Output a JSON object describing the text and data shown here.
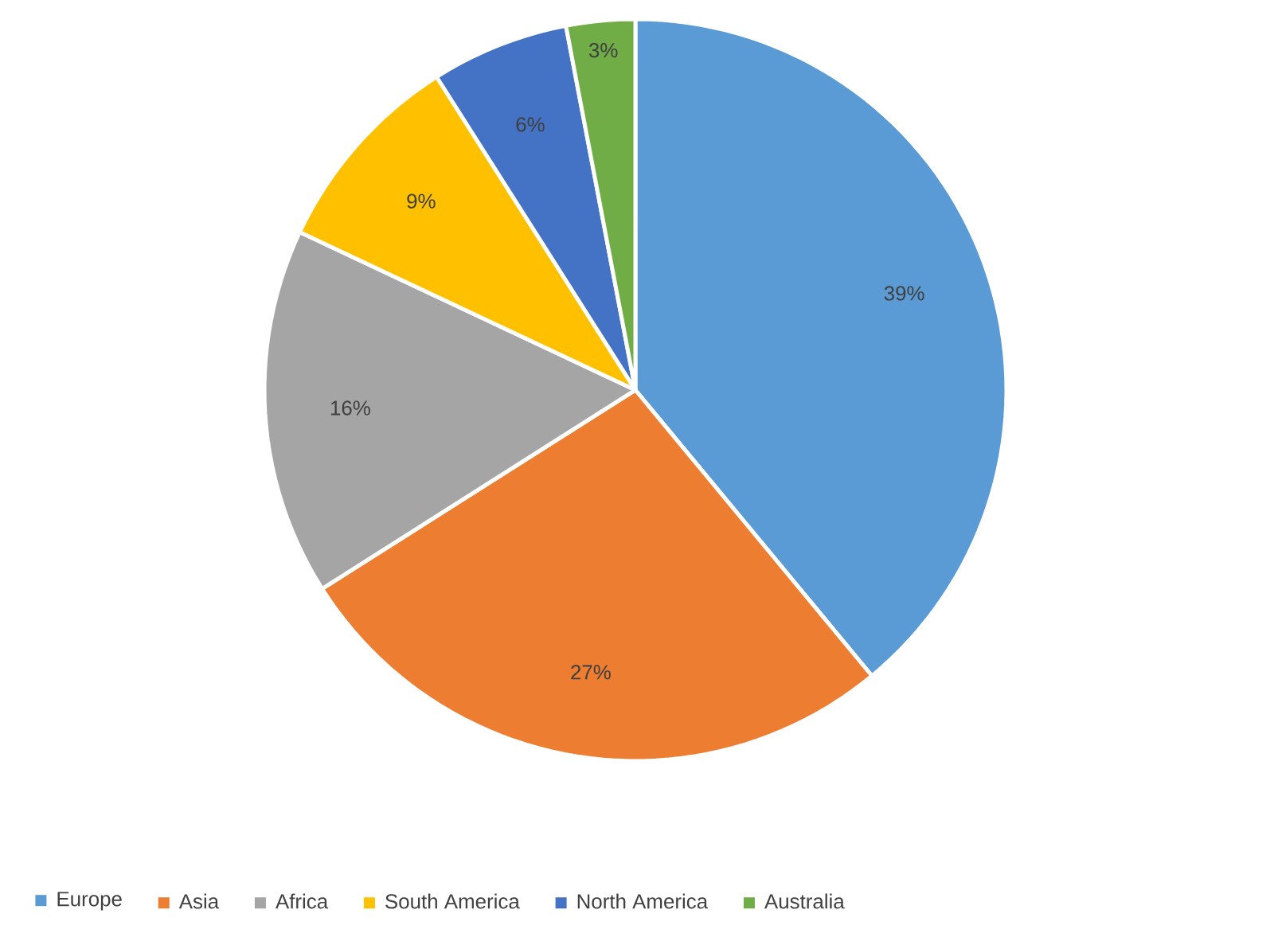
{
  "chart_data": {
    "type": "pie",
    "categories": [
      "Europe",
      "Asia",
      "Africa",
      "South America",
      "North America",
      "Australia"
    ],
    "values": [
      39,
      27,
      16,
      9,
      6,
      3
    ],
    "value_labels": [
      "39%",
      "27%",
      "16%",
      "9%",
      "6%",
      "3%"
    ],
    "colors": [
      "#5b9bd5",
      "#ed7d31",
      "#a5a5a5",
      "#ffc000",
      "#4472c4",
      "#70ad47"
    ],
    "legend": "bottom"
  }
}
